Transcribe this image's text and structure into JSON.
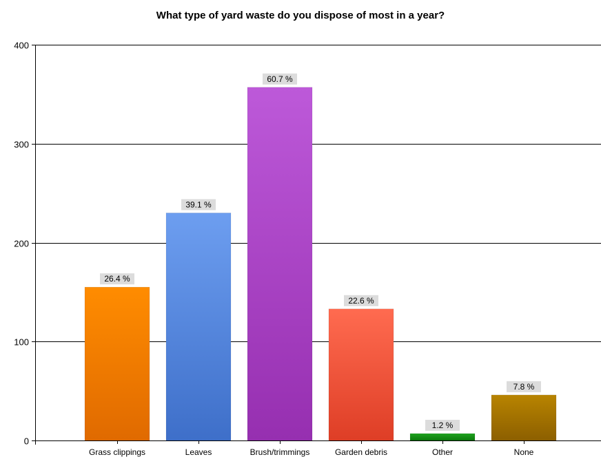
{
  "chart_data": {
    "type": "bar",
    "title": "What type of yard waste do you dispose of most in a year?",
    "xlabel": "",
    "ylabel": "",
    "ylim": [
      0,
      400
    ],
    "yticks": [
      0,
      100,
      200,
      300,
      400
    ],
    "grid": true,
    "categories": [
      "Grass clippings",
      "Leaves",
      "Brush/trimmings",
      "Garden debris",
      "Other",
      "None"
    ],
    "values": [
      155,
      230,
      357,
      133,
      7,
      46
    ],
    "data_labels": [
      "26.4 %",
      "39.1 %",
      "60.7 %",
      "22.6 %",
      "1.2 %",
      "7.8 %"
    ],
    "colors": [
      [
        "#ff8c00",
        "#e06a00"
      ],
      [
        "#6d9ef0",
        "#3e6fc9"
      ],
      [
        "#bd59d9",
        "#962fb0"
      ],
      [
        "#ff6b50",
        "#de3e26"
      ],
      [
        "#1fa31f",
        "#0b7a0b"
      ],
      [
        "#b88400",
        "#8c5f00"
      ]
    ]
  }
}
